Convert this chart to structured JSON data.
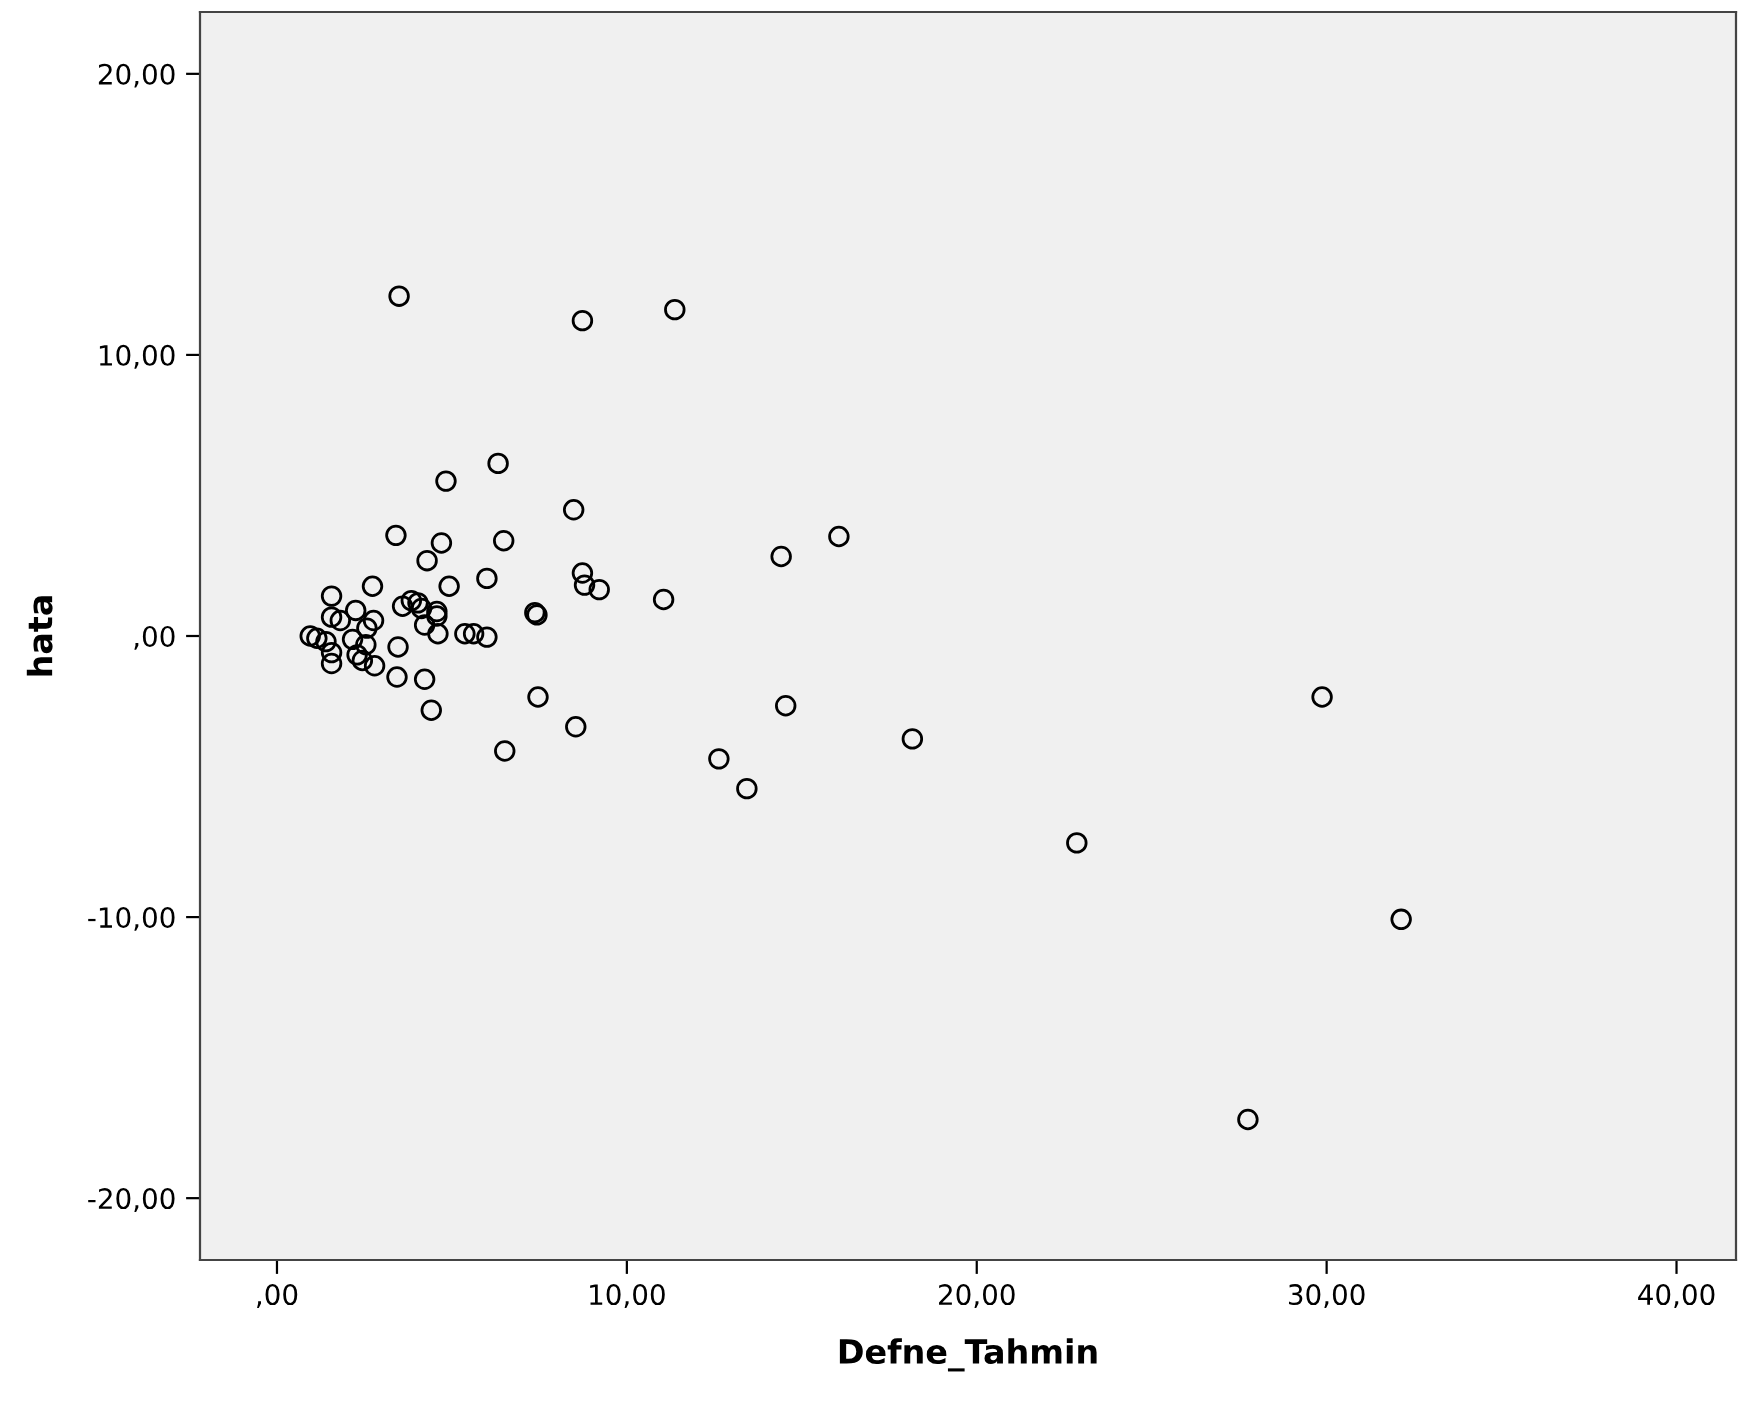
{
  "chart_data": {
    "type": "scatter",
    "xlabel": "Defne_Tahmin",
    "ylabel": "hata",
    "marker": "circle",
    "grid": false,
    "legend": false,
    "xlim": [
      -2.2,
      41.7
    ],
    "ylim": [
      -22.2,
      22.2
    ],
    "xticks": [
      {
        "value": 0,
        "label": ",00"
      },
      {
        "value": 10,
        "label": "10,00"
      },
      {
        "value": 20,
        "label": "20,00"
      },
      {
        "value": 30,
        "label": "30,00"
      },
      {
        "value": 40,
        "label": "40,00"
      }
    ],
    "yticks": [
      {
        "value": -20,
        "label": "-20,00"
      },
      {
        "value": -10,
        "label": "-10,00"
      },
      {
        "value": 0,
        "label": ",00"
      },
      {
        "value": 10,
        "label": "10,00"
      },
      {
        "value": 20,
        "label": "20,00"
      }
    ],
    "series": [
      {
        "color": "#000000",
        "x": [
          3.49,
          8.73,
          11.37,
          6.32,
          4.83,
          8.48,
          3.4,
          4.7,
          6.48,
          16.06,
          14.41,
          4.29,
          2.73,
          4.92,
          6.0,
          8.73,
          8.79,
          9.21,
          11.05,
          1.56,
          3.59,
          3.84,
          4.03,
          4.13,
          4.57,
          4.57,
          7.37,
          7.43,
          2.76,
          2.25,
          1.56,
          1.81,
          4.22,
          4.6,
          5.37,
          5.62,
          6.0,
          0.95,
          1.14,
          1.4,
          2.16,
          2.57,
          2.54,
          3.46,
          1.56,
          2.29,
          2.44,
          1.56,
          2.79,
          3.43,
          4.22,
          4.41,
          7.46,
          14.54,
          8.54,
          6.51,
          18.16,
          12.63,
          13.43,
          22.86,
          29.87,
          32.13,
          27.75
        ],
        "values": [
          12.09,
          11.22,
          11.61,
          6.14,
          5.51,
          4.49,
          3.58,
          3.31,
          3.39,
          3.54,
          2.83,
          2.68,
          1.77,
          1.77,
          2.05,
          2.24,
          1.81,
          1.65,
          1.3,
          1.42,
          1.06,
          1.26,
          1.18,
          0.98,
          0.87,
          0.71,
          0.83,
          0.75,
          0.55,
          0.91,
          0.67,
          0.55,
          0.39,
          0.08,
          0.08,
          0.08,
          -0.04,
          0.0,
          -0.08,
          -0.2,
          -0.12,
          0.28,
          -0.31,
          -0.39,
          -0.59,
          -0.67,
          -0.87,
          -0.98,
          -1.06,
          -1.46,
          -1.54,
          -2.64,
          -2.17,
          -2.48,
          -3.23,
          -4.09,
          -3.66,
          -4.37,
          -5.43,
          -7.36,
          -2.17,
          -10.08,
          -17.2
        ]
      }
    ]
  }
}
